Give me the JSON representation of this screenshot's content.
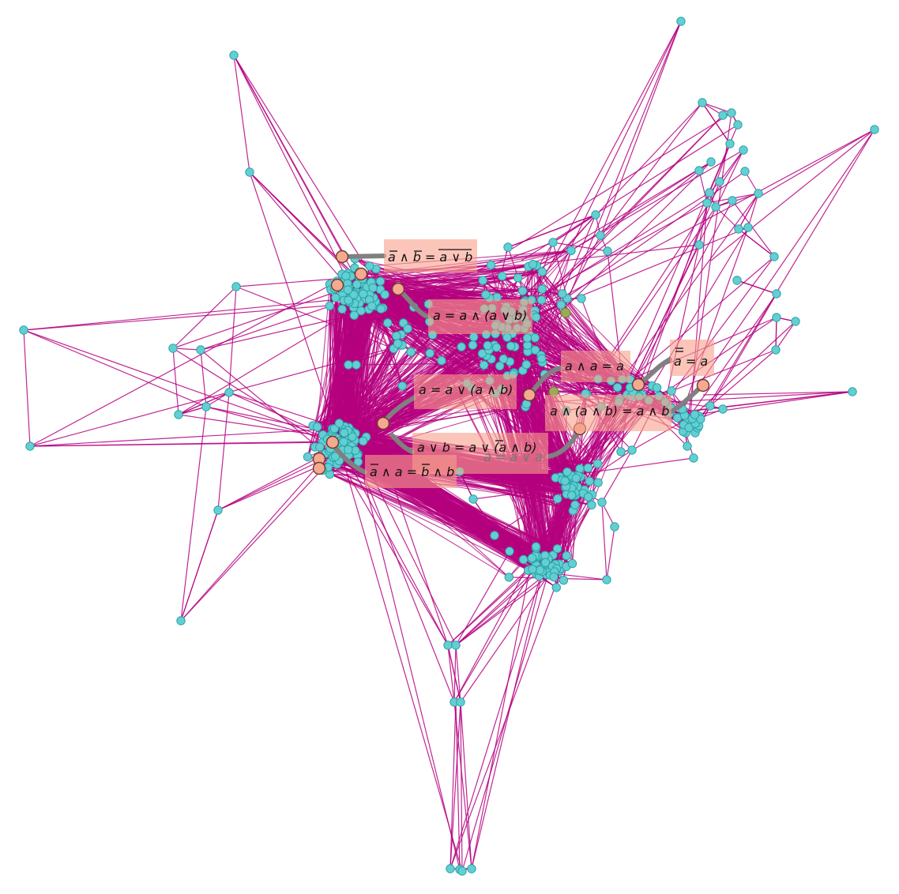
{
  "colors": {
    "edge": "#b5007f",
    "node_fill": "#63cfd2",
    "node_stroke": "#2aa3a8",
    "highlight_fill": "#f5a98e",
    "highlight_stroke": "#6b3a2f",
    "olive_fill": "#9aab55",
    "connector": "#808080",
    "label_bg": "#f9a08a"
  },
  "labels": [
    {
      "id": "demorgan",
      "text": "a̅ ∧ b̅ = a ∨ b (overlined)"
    },
    {
      "id": "absorb1",
      "text": "a = a ∧ (a ∨ b)"
    },
    {
      "id": "idem-and",
      "text": "a ∧ a = a"
    },
    {
      "id": "double-neg",
      "text": "a̿ = a"
    },
    {
      "id": "absorb2",
      "text": "a = a ∨ (a ∧ b)"
    },
    {
      "id": "assoc",
      "text": "a ∧ (a ∧ b) = a ∧ b"
    },
    {
      "id": "distrib",
      "text": "a ∨ b = a ∨ (a̅ ∧ b)"
    },
    {
      "id": "ghost",
      "text": "a = a ∨ a"
    },
    {
      "id": "contra",
      "text": "a̅ ∧ a = b̅ ∧ b"
    }
  ]
}
